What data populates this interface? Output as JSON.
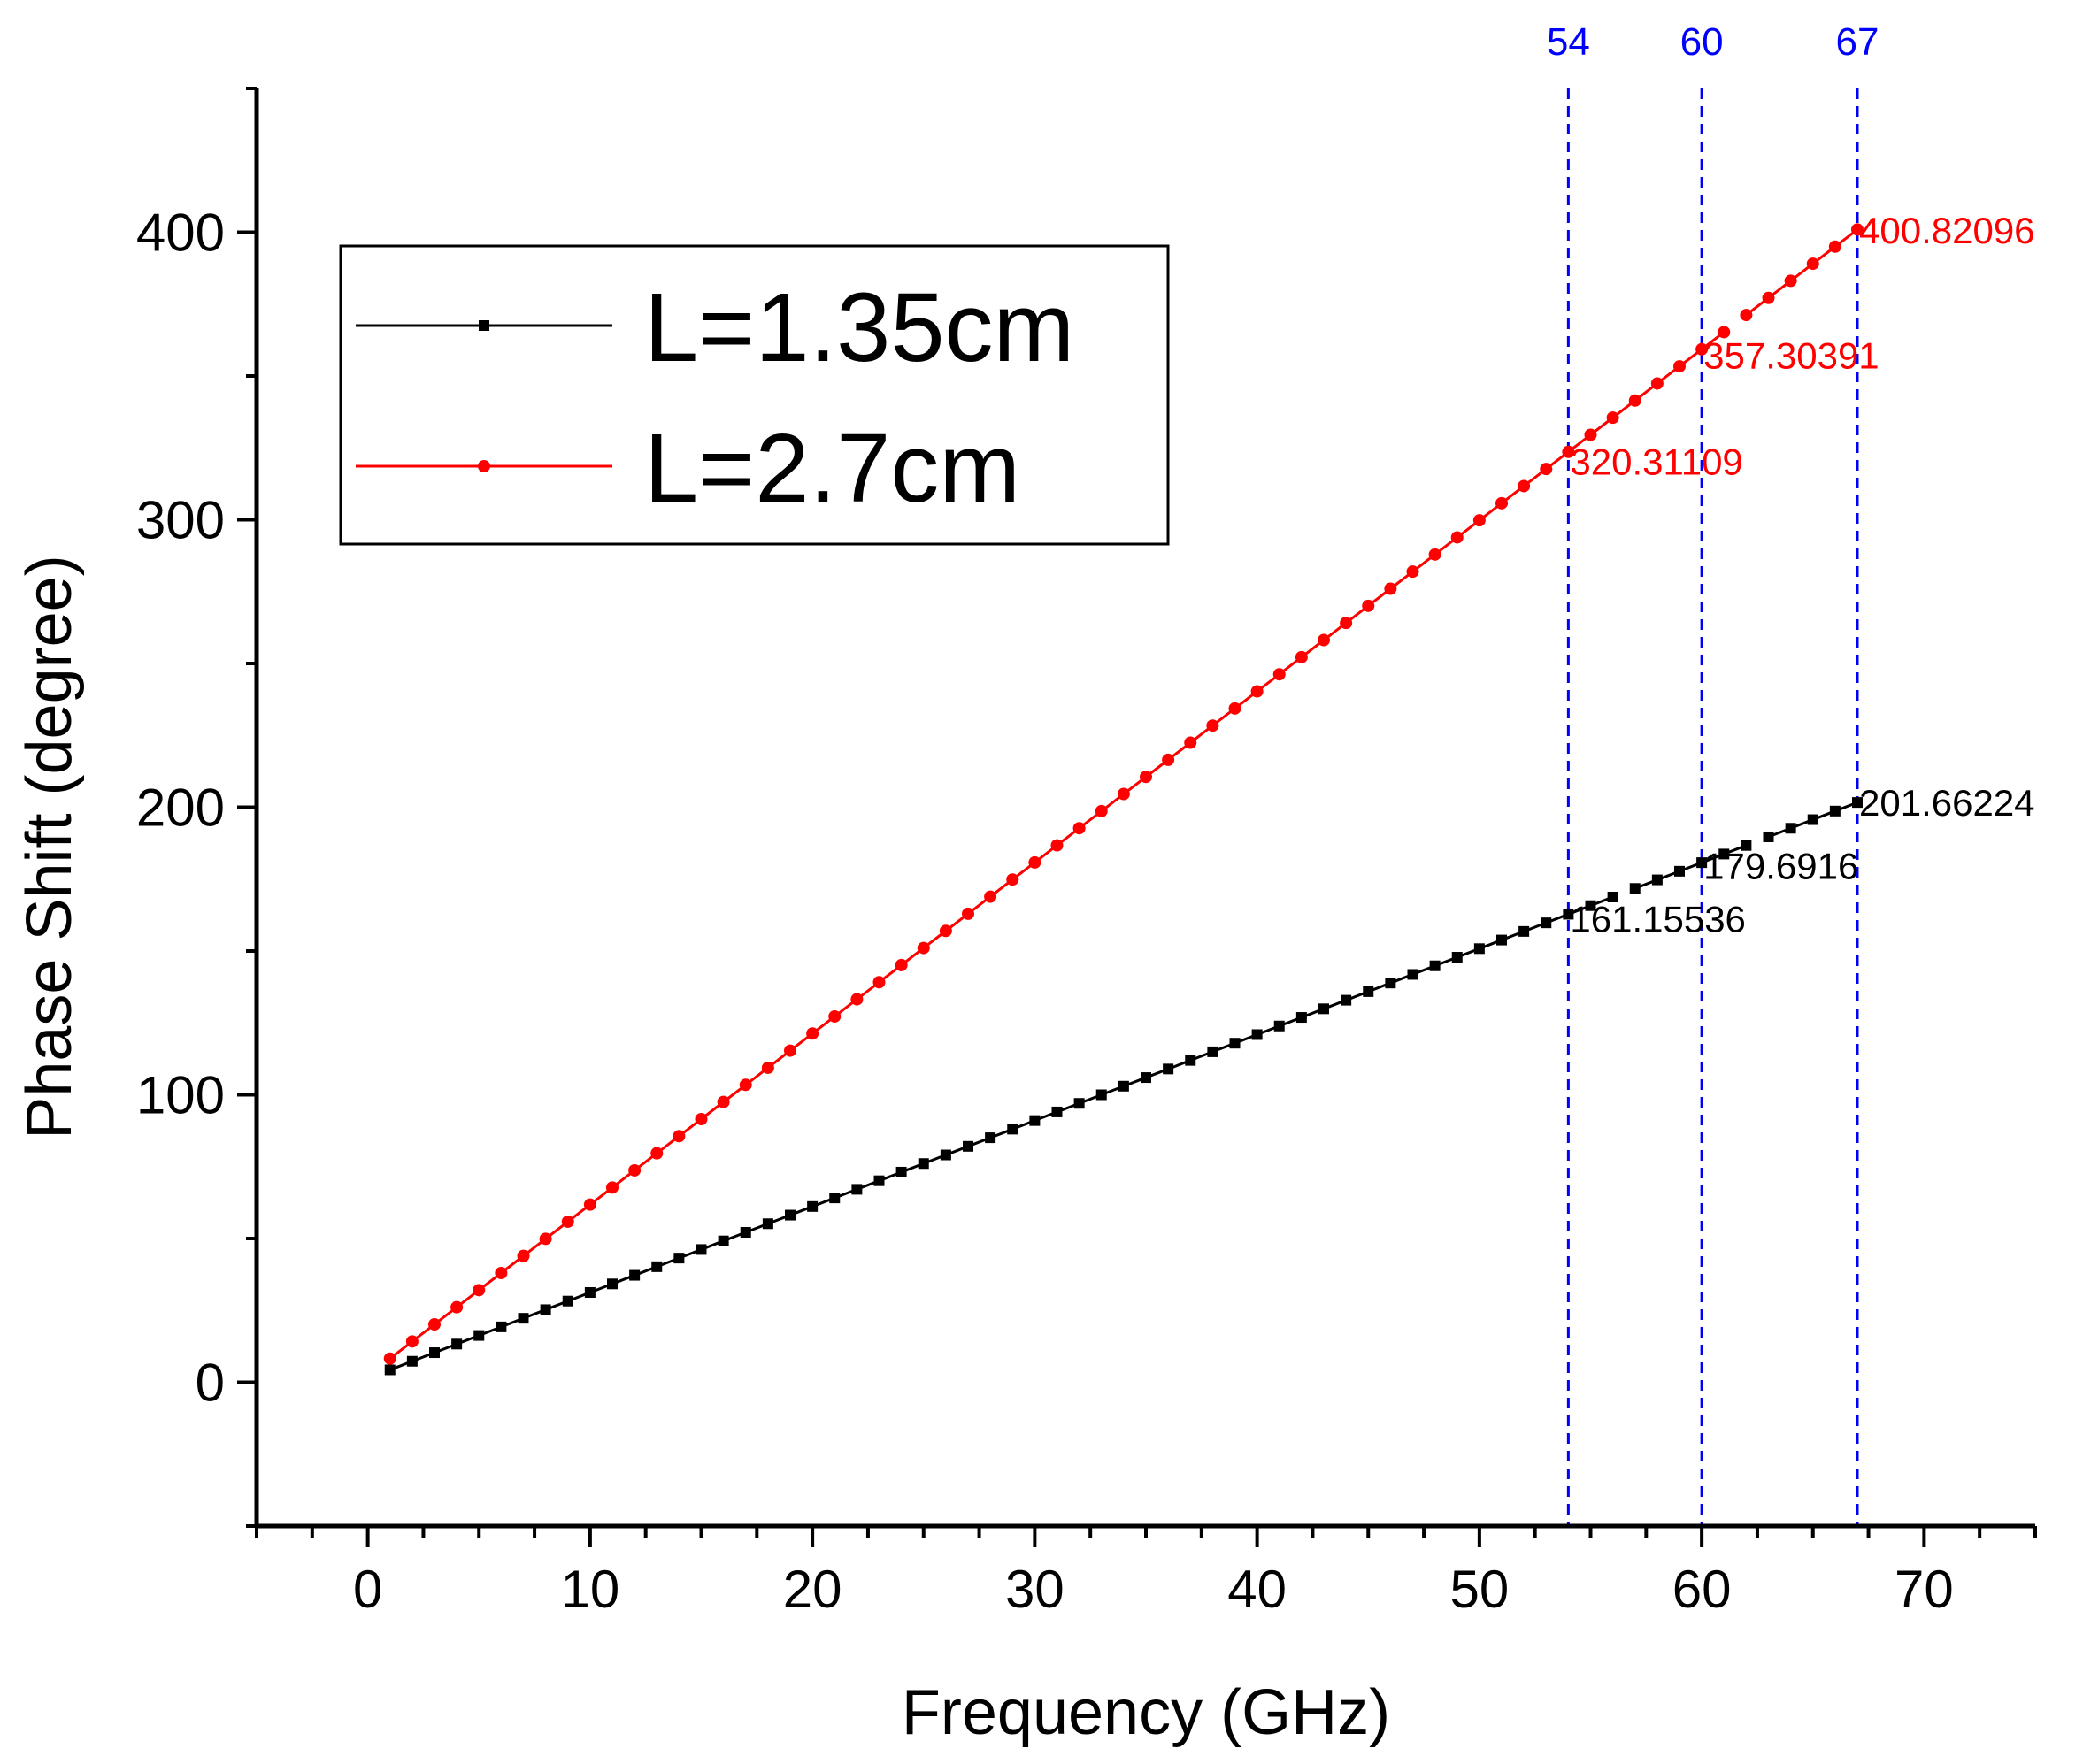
{
  "chart_data": {
    "type": "line",
    "title": "",
    "xlabel": "Frequency (GHz)",
    "ylabel": "Phase Shift (degree)",
    "xlim": [
      -5,
      75
    ],
    "ylim": [
      -50,
      450
    ],
    "x_ticks": [
      0,
      10,
      20,
      30,
      40,
      50,
      60,
      70
    ],
    "y_ticks": [
      0,
      100,
      200,
      300,
      400
    ],
    "x_start": 1,
    "x_end": 67,
    "x_step": 1,
    "series": [
      {
        "name": "L=1.35cm",
        "color": "#000000",
        "marker": "square",
        "slope": 2.99,
        "intercept": 1.33,
        "gap_after": [
          56,
          62
        ]
      },
      {
        "name": "L=2.7cm",
        "color": "#ff0000",
        "marker": "circle",
        "slope": 5.95,
        "intercept": 2.3,
        "gap_after": [
          61
        ]
      }
    ],
    "vertical_lines": [
      {
        "x": 54,
        "label": "54",
        "color": "#0000ff"
      },
      {
        "x": 60,
        "label": "60",
        "color": "#0000ff"
      },
      {
        "x": 67,
        "label": "67",
        "color": "#0000ff"
      }
    ],
    "annotations": [
      {
        "x": 54,
        "y": 161.15536,
        "text": "161.15536",
        "color": "#000000"
      },
      {
        "x": 60,
        "y": 179.6916,
        "text": "179.6916",
        "color": "#000000"
      },
      {
        "x": 67,
        "y": 201.66224,
        "text": "201.66224",
        "color": "#000000"
      },
      {
        "x": 54,
        "y": 320.31109,
        "text": "320.31109",
        "color": "#ff0000"
      },
      {
        "x": 60,
        "y": 357.30391,
        "text": "357.30391",
        "color": "#ff0000"
      },
      {
        "x": 67,
        "y": 400.82096,
        "text": "400.82096",
        "color": "#ff0000"
      }
    ],
    "legend": {
      "placement": "top-left",
      "entries": [
        "L=1.35cm",
        "L=2.7cm"
      ]
    }
  }
}
